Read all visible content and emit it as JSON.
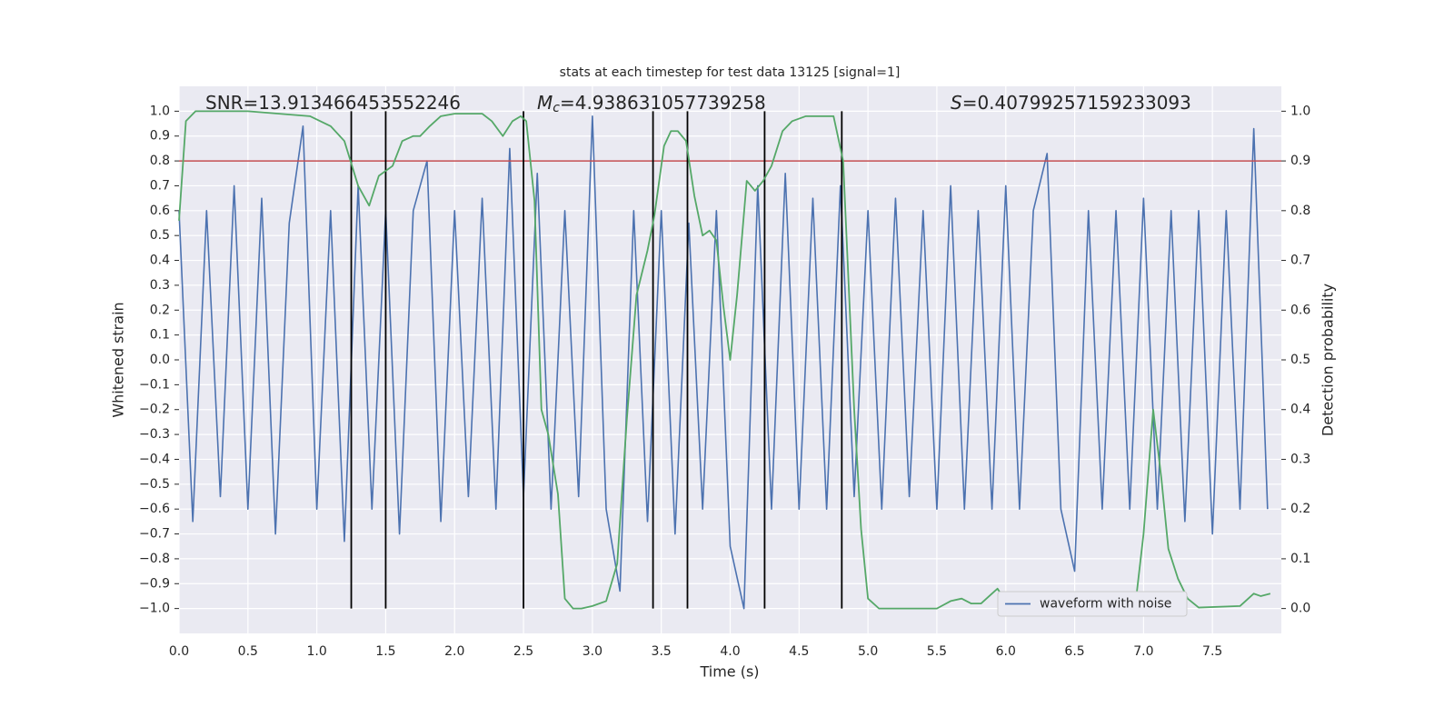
{
  "chart_data": {
    "type": "line",
    "title": "stats at each timestep for test data 13125 [signal=1]",
    "xlabel": "Time (s)",
    "ylabel": "Whitened strain",
    "y2label": "Detection probability",
    "xlim": [
      0,
      8.0
    ],
    "ylim": [
      -1.1,
      1.1
    ],
    "y2lim": [
      -0.05,
      1.05
    ],
    "grid": true,
    "legend": "lower right",
    "xticks": [
      {
        "value": 0,
        "label": "0.0"
      },
      {
        "value": 0.5,
        "label": "0.5"
      },
      {
        "value": 1,
        "label": "1.0"
      },
      {
        "value": 1.5,
        "label": "1.5"
      },
      {
        "value": 2,
        "label": "2.0"
      },
      {
        "value": 2.5,
        "label": "2.5"
      },
      {
        "value": 3,
        "label": "3.0"
      },
      {
        "value": 3.5,
        "label": "3.5"
      },
      {
        "value": 4,
        "label": "4.0"
      },
      {
        "value": 4.5,
        "label": "4.5"
      },
      {
        "value": 5,
        "label": "5.0"
      },
      {
        "value": 5.5,
        "label": "5.5"
      },
      {
        "value": 6,
        "label": "6.0"
      },
      {
        "value": 6.5,
        "label": "6.5"
      },
      {
        "value": 7,
        "label": "7.0"
      },
      {
        "value": 7.5,
        "label": "7.5"
      }
    ],
    "yticks": [
      {
        "value": -1,
        "label": "−1.0"
      },
      {
        "value": -0.9,
        "label": "−0.9"
      },
      {
        "value": -0.8,
        "label": "−0.8"
      },
      {
        "value": -0.7,
        "label": "−0.7"
      },
      {
        "value": -0.6,
        "label": "−0.6"
      },
      {
        "value": -0.5,
        "label": "−0.5"
      },
      {
        "value": -0.4,
        "label": "−0.4"
      },
      {
        "value": -0.3,
        "label": "−0.3"
      },
      {
        "value": -0.2,
        "label": "−0.2"
      },
      {
        "value": -0.1,
        "label": "−0.1"
      },
      {
        "value": 0,
        "label": "0.0"
      },
      {
        "value": 0.1,
        "label": "0.1"
      },
      {
        "value": 0.2,
        "label": "0.2"
      },
      {
        "value": 0.3,
        "label": "0.3"
      },
      {
        "value": 0.4,
        "label": "0.4"
      },
      {
        "value": 0.5,
        "label": "0.5"
      },
      {
        "value": 0.6,
        "label": "0.6"
      },
      {
        "value": 0.7,
        "label": "0.7"
      },
      {
        "value": 0.8,
        "label": "0.8"
      },
      {
        "value": 0.9,
        "label": "0.9"
      },
      {
        "value": 1,
        "label": "1.0"
      }
    ],
    "y2ticks": [
      {
        "value": 0,
        "label": "0.0"
      },
      {
        "value": 0.1,
        "label": "0.1"
      },
      {
        "value": 0.2,
        "label": "0.2"
      },
      {
        "value": 0.3,
        "label": "0.3"
      },
      {
        "value": 0.4,
        "label": "0.4"
      },
      {
        "value": 0.5,
        "label": "0.5"
      },
      {
        "value": 0.6,
        "label": "0.6"
      },
      {
        "value": 0.7,
        "label": "0.7"
      },
      {
        "value": 0.8,
        "label": "0.8"
      },
      {
        "value": 0.9,
        "label": "0.9"
      },
      {
        "value": 1,
        "label": "1.0"
      }
    ],
    "series": [
      {
        "name": "waveform with noise",
        "color": "#4c72b0",
        "x": [
          0,
          0.1,
          0.2,
          0.3,
          0.4,
          0.5,
          0.6,
          0.7,
          0.8,
          0.9,
          1,
          1.1,
          1.2,
          1.3,
          1.4,
          1.5,
          1.6,
          1.7,
          1.8,
          1.9,
          2,
          2.1,
          2.2,
          2.3,
          2.4,
          2.5,
          2.6,
          2.7,
          2.8,
          2.9,
          3,
          3.1,
          3.2,
          3.3,
          3.4,
          3.5,
          3.6,
          3.7,
          3.8,
          3.9,
          4,
          4.1,
          4.2,
          4.3,
          4.4,
          4.5,
          4.6,
          4.7,
          4.8,
          4.9,
          5,
          5.1,
          5.2,
          5.3,
          5.4,
          5.5,
          5.6,
          5.7,
          5.8,
          5.9,
          6,
          6.1,
          6.2,
          6.3,
          6.4,
          6.5,
          6.6,
          6.7,
          6.8,
          6.9,
          7,
          7.1,
          7.2,
          7.3,
          7.4,
          7.5,
          7.6,
          7.7,
          7.8,
          7.9
        ],
        "values": [
          0.6,
          -0.65,
          0.6,
          -0.55,
          0.7,
          -0.6,
          0.65,
          -0.7,
          0.55,
          0.94,
          -0.6,
          0.6,
          -0.73,
          0.7,
          -0.6,
          0.6,
          -0.7,
          0.6,
          0.8,
          -0.65,
          0.6,
          -0.55,
          0.65,
          -0.6,
          0.85,
          -0.55,
          0.75,
          -0.6,
          0.6,
          -0.55,
          0.98,
          -0.6,
          -0.93,
          0.6,
          -0.65,
          0.6,
          -0.7,
          0.55,
          -0.6,
          0.6,
          -0.75,
          -1.0,
          0.7,
          -0.6,
          0.75,
          -0.6,
          0.65,
          -0.6,
          0.7,
          -0.55,
          0.6,
          -0.6,
          0.65,
          -0.55,
          0.6,
          -0.6,
          0.7,
          -0.6,
          0.6,
          -0.6,
          0.7,
          -0.6,
          0.6,
          0.83,
          -0.6,
          -0.85,
          0.6,
          -0.6,
          0.6,
          -0.6,
          0.65,
          -0.6,
          0.6,
          -0.65,
          0.6,
          -0.7,
          0.6,
          -0.6,
          0.93,
          -0.6
        ]
      },
      {
        "color": "#55a868",
        "axis": "y2",
        "x": [
          0,
          0.05,
          0.12,
          0.5,
          0.95,
          1.1,
          1.2,
          1.3,
          1.38,
          1.45,
          1.55,
          1.62,
          1.7,
          1.75,
          1.82,
          1.9,
          2.0,
          2.2,
          2.27,
          2.35,
          2.42,
          2.48,
          2.52,
          2.58,
          2.63,
          2.68,
          2.75,
          2.8,
          2.86,
          2.92,
          3.0,
          3.1,
          3.18,
          3.25,
          3.32,
          3.4,
          3.45,
          3.52,
          3.57,
          3.62,
          3.68,
          3.74,
          3.8,
          3.85,
          3.9,
          3.95,
          4.0,
          4.05,
          4.12,
          4.18,
          4.24,
          4.3,
          4.38,
          4.45,
          4.55,
          4.75,
          4.82,
          4.9,
          4.95,
          5.0,
          5.08,
          5.5,
          5.6,
          5.68,
          5.75,
          5.82,
          5.9,
          5.94,
          6.0,
          6.1,
          6.5,
          6.8,
          6.9,
          6.95,
          7.0,
          7.07,
          7.13,
          7.18,
          7.25,
          7.32,
          7.4,
          7.7,
          7.8,
          7.85,
          7.92
        ],
        "values": [
          0.78,
          0.98,
          1.0,
          1.0,
          0.99,
          0.97,
          0.94,
          0.85,
          0.81,
          0.87,
          0.89,
          0.94,
          0.95,
          0.95,
          0.97,
          0.99,
          0.995,
          0.995,
          0.98,
          0.95,
          0.98,
          0.99,
          0.98,
          0.82,
          0.4,
          0.35,
          0.23,
          0.02,
          0.0,
          0.0,
          0.005,
          0.015,
          0.09,
          0.38,
          0.63,
          0.72,
          0.79,
          0.93,
          0.96,
          0.96,
          0.94,
          0.83,
          0.75,
          0.76,
          0.74,
          0.61,
          0.5,
          0.63,
          0.86,
          0.84,
          0.86,
          0.89,
          0.96,
          0.98,
          0.99,
          0.99,
          0.9,
          0.4,
          0.16,
          0.02,
          0.0,
          0.0,
          0.015,
          0.02,
          0.01,
          0.01,
          0.03,
          0.04,
          0.015,
          0.0,
          0.0,
          0.01,
          0.025,
          0.03,
          0.15,
          0.4,
          0.26,
          0.12,
          0.06,
          0.02,
          0.002,
          0.005,
          0.03,
          0.025,
          0.03
        ]
      }
    ],
    "hline": {
      "y": 0.8,
      "color": "#c44e52"
    },
    "vlines": {
      "x": [
        1.25,
        1.5,
        2.5,
        3.44,
        3.69,
        4.25,
        4.81
      ],
      "ymin": -1.0,
      "ymax": 1.0,
      "color": "#000000"
    },
    "annotations": [
      {
        "text": "SNR=13.913466453552246"
      },
      {
        "symbol": "M",
        "subscript": "c",
        "text": "=4.938631057739258"
      },
      {
        "symbol": "S",
        "text": "=0.40799257159233093"
      }
    ]
  }
}
